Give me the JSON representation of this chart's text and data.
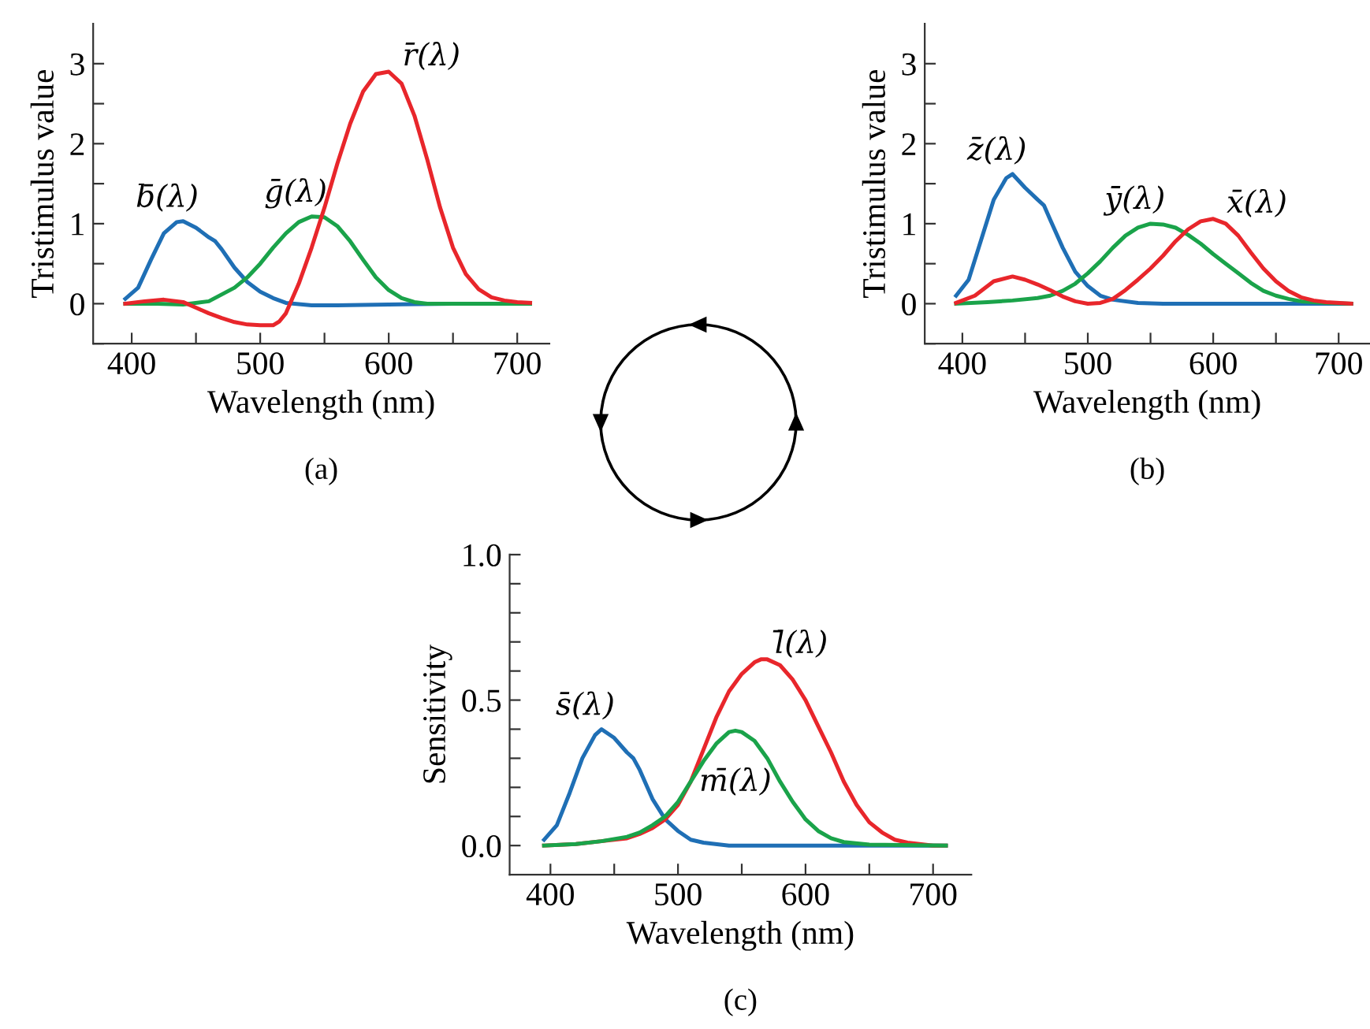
{
  "chart_data": [
    {
      "type": "line",
      "xlabel": "Wavelength (nm)",
      "ylabel": "Tristimulus value",
      "annotations": [
        "(a)"
      ],
      "xlim": [
        370,
        725
      ],
      "ylim": [
        -0.5,
        3.5
      ],
      "xticks": [
        400,
        {
          "value": 450,
          "label": null
        },
        500,
        {
          "value": 550,
          "label": null
        },
        600,
        {
          "value": 650,
          "label": null
        },
        700
      ],
      "yticks": [
        {
          "value": -0.5,
          "label": null
        },
        0,
        {
          "value": 0.5,
          "label": null
        },
        1,
        {
          "value": 1.5,
          "label": null
        },
        2,
        {
          "value": 2.5,
          "label": null
        },
        3
      ],
      "grid": false,
      "legend": false,
      "line_style": "solid",
      "marker": "none",
      "series": [
        {
          "name": "b̄(λ)",
          "color": "#1f6fb5",
          "x": [
            395,
            405,
            415,
            425,
            435,
            440,
            450,
            460,
            465,
            470,
            480,
            490,
            500,
            510,
            520,
            540,
            560,
            600,
            650,
            710
          ],
          "values": [
            0.06,
            0.2,
            0.55,
            0.88,
            1.02,
            1.03,
            0.95,
            0.83,
            0.78,
            0.68,
            0.45,
            0.27,
            0.15,
            0.07,
            0.01,
            -0.02,
            -0.02,
            -0.01,
            0,
            0
          ]
        },
        {
          "name": "ḡ(λ)",
          "color": "#1aa34a",
          "x": [
            395,
            420,
            440,
            460,
            480,
            490,
            500,
            510,
            520,
            530,
            540,
            550,
            560,
            570,
            580,
            590,
            600,
            610,
            620,
            630,
            650,
            700,
            710
          ],
          "values": [
            0,
            0,
            -0.01,
            0.03,
            0.2,
            0.33,
            0.5,
            0.7,
            0.88,
            1.02,
            1.09,
            1.08,
            0.97,
            0.78,
            0.55,
            0.33,
            0.17,
            0.07,
            0.02,
            0,
            0,
            0,
            0
          ]
        },
        {
          "name": "r̄(λ)",
          "color": "#e8262b",
          "x": [
            395,
            410,
            425,
            440,
            450,
            460,
            470,
            480,
            490,
            500,
            510,
            515,
            520,
            530,
            540,
            550,
            560,
            570,
            580,
            590,
            600,
            610,
            620,
            630,
            640,
            650,
            660,
            670,
            680,
            690,
            700,
            710
          ],
          "values": [
            0,
            0.03,
            0.05,
            0.02,
            -0.05,
            -0.12,
            -0.18,
            -0.23,
            -0.26,
            -0.27,
            -0.27,
            -0.22,
            -0.12,
            0.25,
            0.7,
            1.2,
            1.75,
            2.25,
            2.65,
            2.87,
            2.9,
            2.75,
            2.35,
            1.8,
            1.2,
            0.7,
            0.37,
            0.18,
            0.08,
            0.04,
            0.02,
            0.01
          ]
        }
      ]
    },
    {
      "type": "line",
      "xlabel": "Wavelength (nm)",
      "ylabel": "Tristimulus value",
      "annotations": [
        "(b)"
      ],
      "xlim": [
        370,
        725
      ],
      "ylim": [
        -0.5,
        3.5
      ],
      "xticks": [
        400,
        {
          "value": 450,
          "label": null
        },
        500,
        {
          "value": 550,
          "label": null
        },
        600,
        {
          "value": 650,
          "label": null
        },
        700
      ],
      "yticks": [
        {
          "value": -0.5,
          "label": null
        },
        0,
        {
          "value": 0.5,
          "label": null
        },
        1,
        {
          "value": 1.5,
          "label": null
        },
        2,
        {
          "value": 2.5,
          "label": null
        },
        3
      ],
      "grid": false,
      "legend": false,
      "line_style": "solid",
      "marker": "none",
      "series": [
        {
          "name": "z̄(λ)",
          "color": "#1f6fb5",
          "x": [
            395,
            405,
            415,
            425,
            435,
            440,
            450,
            460,
            465,
            470,
            480,
            490,
            500,
            510,
            520,
            540,
            560,
            710
          ],
          "values": [
            0.1,
            0.3,
            0.8,
            1.3,
            1.57,
            1.62,
            1.45,
            1.3,
            1.23,
            1.05,
            0.7,
            0.4,
            0.22,
            0.1,
            0.05,
            0.01,
            0,
            0
          ]
        },
        {
          "name": "ȳ(λ)",
          "color": "#1aa34a",
          "x": [
            395,
            420,
            440,
            460,
            470,
            480,
            490,
            500,
            510,
            520,
            530,
            540,
            550,
            560,
            570,
            580,
            590,
            600,
            610,
            620,
            630,
            640,
            650,
            660,
            670,
            690,
            710
          ],
          "values": [
            0,
            0.02,
            0.04,
            0.07,
            0.1,
            0.16,
            0.25,
            0.38,
            0.53,
            0.7,
            0.85,
            0.95,
            1.0,
            0.99,
            0.95,
            0.86,
            0.75,
            0.62,
            0.5,
            0.38,
            0.26,
            0.16,
            0.1,
            0.06,
            0.03,
            0.01,
            0
          ]
        },
        {
          "name": "x̄(λ)",
          "color": "#e8262b",
          "x": [
            395,
            410,
            425,
            440,
            450,
            460,
            470,
            480,
            490,
            500,
            510,
            520,
            530,
            540,
            550,
            560,
            570,
            580,
            590,
            600,
            610,
            620,
            630,
            640,
            650,
            660,
            670,
            680,
            690,
            710
          ],
          "values": [
            0.01,
            0.1,
            0.28,
            0.34,
            0.3,
            0.24,
            0.17,
            0.09,
            0.03,
            0,
            0.01,
            0.06,
            0.17,
            0.3,
            0.44,
            0.6,
            0.78,
            0.93,
            1.03,
            1.06,
            1.0,
            0.85,
            0.64,
            0.44,
            0.28,
            0.16,
            0.08,
            0.04,
            0.02,
            0
          ]
        }
      ]
    },
    {
      "type": "line",
      "xlabel": "Wavelength (nm)",
      "ylabel": "Sensitivity",
      "annotations": [
        "(c)"
      ],
      "xlim": [
        368,
        730
      ],
      "ylim": [
        -0.1,
        1.0
      ],
      "xticks": [
        400,
        {
          "value": 450,
          "label": null
        },
        500,
        {
          "value": 550,
          "label": null
        },
        600,
        {
          "value": 650,
          "label": null
        },
        700
      ],
      "yticks": [
        {
          "value": 0,
          "label": "0.0"
        },
        {
          "value": 0.1,
          "label": null
        },
        {
          "value": 0.2,
          "label": null
        },
        {
          "value": 0.3,
          "label": null
        },
        {
          "value": 0.4,
          "label": null
        },
        {
          "value": 0.5,
          "label": "0.5"
        },
        {
          "value": 0.6,
          "label": null
        },
        {
          "value": 0.7,
          "label": null
        },
        {
          "value": 0.8,
          "label": null
        },
        {
          "value": 0.9,
          "label": null
        },
        {
          "value": 1.0,
          "label": "1.0"
        }
      ],
      "grid": false,
      "legend": false,
      "line_style": "solid",
      "marker": "none",
      "series": [
        {
          "name": "s̄(λ)",
          "color": "#1f6fb5",
          "x": [
            395,
            405,
            415,
            425,
            435,
            440,
            450,
            460,
            465,
            470,
            480,
            490,
            500,
            510,
            520,
            540,
            710
          ],
          "values": [
            0.02,
            0.07,
            0.18,
            0.3,
            0.38,
            0.4,
            0.37,
            0.32,
            0.3,
            0.26,
            0.16,
            0.09,
            0.05,
            0.02,
            0.01,
            0,
            0
          ]
        },
        {
          "name": "l̄(λ)",
          "color": "#e8262b",
          "x": [
            395,
            420,
            440,
            460,
            470,
            480,
            490,
            500,
            510,
            520,
            530,
            540,
            550,
            560,
            565,
            570,
            580,
            590,
            600,
            610,
            620,
            630,
            640,
            650,
            660,
            670,
            680,
            700,
            710
          ],
          "values": [
            0,
            0.005,
            0.015,
            0.025,
            0.04,
            0.06,
            0.09,
            0.14,
            0.22,
            0.33,
            0.44,
            0.53,
            0.59,
            0.63,
            0.64,
            0.64,
            0.62,
            0.57,
            0.5,
            0.41,
            0.32,
            0.22,
            0.14,
            0.08,
            0.045,
            0.02,
            0.01,
            0,
            0
          ]
        },
        {
          "name": "m̄(λ)",
          "color": "#1aa34a",
          "x": [
            395,
            420,
            440,
            460,
            470,
            480,
            490,
            500,
            510,
            520,
            530,
            540,
            545,
            550,
            560,
            570,
            580,
            590,
            600,
            610,
            620,
            630,
            650,
            710
          ],
          "values": [
            0,
            0.005,
            0.015,
            0.03,
            0.045,
            0.07,
            0.1,
            0.15,
            0.22,
            0.29,
            0.35,
            0.39,
            0.395,
            0.39,
            0.36,
            0.3,
            0.22,
            0.15,
            0.09,
            0.05,
            0.025,
            0.012,
            0.003,
            0
          ]
        }
      ]
    }
  ]
}
